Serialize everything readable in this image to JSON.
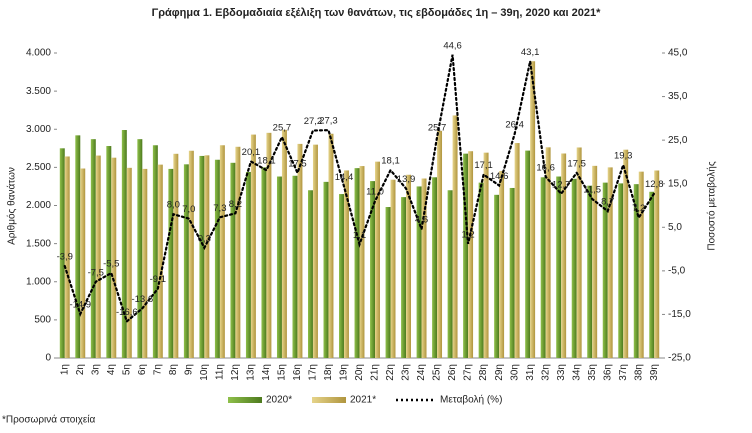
{
  "chart_data": {
    "type": "bar-line",
    "title": "Γράφημα 1.  Εβδομαδιαία εξέλιξη των θανάτων, τις εβδομάδες 1η – 39η, 2020 και 2021*",
    "ylabel": "Αριθμός θανάτων",
    "y2label": "Ποσοστό μεταβολής",
    "footnote": "*Προσωρινά στοιχεία",
    "categories": [
      "1η",
      "2η",
      "3η",
      "4η",
      "5η",
      "6η",
      "7η",
      "8η",
      "9η",
      "10η",
      "11η",
      "12η",
      "13η",
      "14η",
      "15η",
      "16η",
      "17η",
      "18η",
      "19η",
      "20η",
      "21η",
      "22η",
      "23η",
      "24η",
      "25η",
      "26η",
      "27η",
      "28η",
      "29η",
      "30η",
      "31η",
      "32η",
      "33η",
      "34η",
      "35η",
      "36η",
      "37η",
      "38η",
      "39η"
    ],
    "series": [
      {
        "name": "2020*",
        "color": "#6b9a2e",
        "values": [
          2750,
          2920,
          2870,
          2780,
          2990,
          2870,
          2790,
          2480,
          2540,
          2650,
          2600,
          2560,
          2440,
          2500,
          2380,
          2390,
          2200,
          2310,
          2150,
          2490,
          2320,
          1980,
          2110,
          2250,
          2370,
          2200,
          2680,
          2300,
          2140,
          2230,
          2720,
          2370,
          2380,
          2350,
          2260,
          2300,
          2290,
          2280,
          2180
        ]
      },
      {
        "name": "2021*",
        "color": "#c9b25e",
        "values": [
          2643,
          2485,
          2655,
          2627,
          2494,
          2480,
          2536,
          2678,
          2718,
          2658,
          2790,
          2770,
          2930,
          2953,
          2992,
          2808,
          2798,
          2941,
          2460,
          2517,
          2575,
          2338,
          2403,
          2354,
          2979,
          3181,
          2712,
          2693,
          2452,
          2819,
          3892,
          2763,
          2682,
          2761,
          2520,
          2500,
          2732,
          2444,
          2459
        ]
      },
      {
        "name": "Μεταβολή (%)",
        "color": "#000000",
        "axis": "y2",
        "values": [
          -3.9,
          -14.9,
          -7.5,
          -5.5,
          -16.6,
          -13.6,
          -9.1,
          8.0,
          7.0,
          0.3,
          7.3,
          8.2,
          20.1,
          18.1,
          25.7,
          17.5,
          27.2,
          27.3,
          14.4,
          1.1,
          11.0,
          18.1,
          13.9,
          4.6,
          25.7,
          44.6,
          1.2,
          17.1,
          14.6,
          26.4,
          43.1,
          16.6,
          12.7,
          17.5,
          11.5,
          8.7,
          19.3,
          7.2,
          12.8
        ],
        "value_labels": [
          "-3,9",
          "-14,9",
          "-7,5",
          "-5,5",
          "-16,6",
          "-13,6",
          "-9,1",
          "8,0",
          "7,0",
          "0,3",
          "7,3",
          "8,2",
          "20,1",
          "18,1",
          "25,7",
          "17,5",
          "27,2",
          "27,3",
          "14,4",
          "1,1",
          "11,0",
          "18,1",
          "13,9",
          "4,6",
          "25,7",
          "44,6",
          "1,2",
          "17,1",
          "14,6",
          "26,4",
          "43,1",
          "16,6",
          "12,7",
          "17,5",
          "11,5",
          "8,7",
          "19,3",
          "7,2",
          "12,8"
        ]
      }
    ],
    "ylim": [
      0,
      4000
    ],
    "yticks": [
      0,
      {
        "value": 500,
        "label": "500"
      },
      {
        "value": 1000,
        "label": "1.000"
      },
      {
        "value": 1500,
        "label": "1.500"
      },
      {
        "value": 2000,
        "label": "2.000"
      },
      {
        "value": 2500,
        "label": "2.500"
      },
      {
        "value": 3000,
        "label": "3.000"
      },
      {
        "value": 3500,
        "label": "3.500"
      },
      {
        "value": 4000,
        "label": "4.000"
      }
    ],
    "y2lim": [
      -25,
      45
    ],
    "y2ticks": [
      {
        "value": -25,
        "label": "-25,0"
      },
      {
        "value": -15,
        "label": "-15,0"
      },
      {
        "value": -5,
        "label": "-5,0"
      },
      {
        "value": 5,
        "label": "5,0"
      },
      {
        "value": 15,
        "label": "15,0"
      },
      {
        "value": 25,
        "label": "25,0"
      },
      {
        "value": 35,
        "label": "35,0"
      },
      {
        "value": 45,
        "label": "45,0"
      }
    ],
    "legend": "bottom"
  }
}
